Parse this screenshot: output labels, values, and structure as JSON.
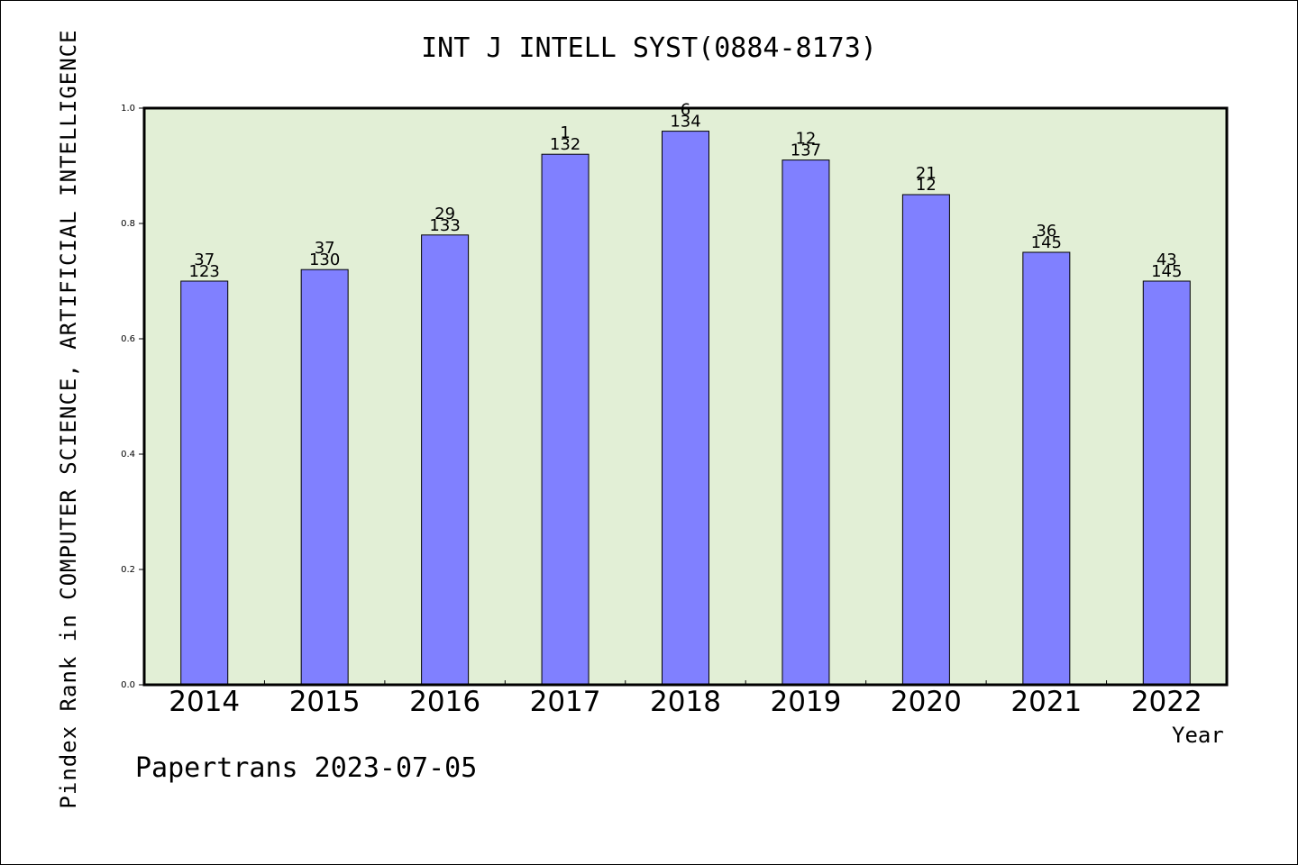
{
  "chart_data": {
    "type": "bar",
    "title": "INT J INTELL SYST(0884-8173)",
    "xlabel": "Year",
    "ylabel": "Pindex Rank in COMPUTER SCIENCE, ARTIFICIAL INTELLIGENCE",
    "ylim": [
      0,
      1.0
    ],
    "yticks": [
      "0.0",
      "0.2",
      "0.4",
      "0.6",
      "0.8",
      "1.0"
    ],
    "categories": [
      "2014",
      "2015",
      "2016",
      "2017",
      "2018",
      "2019",
      "2020",
      "2021",
      "2022"
    ],
    "values": [
      0.7,
      0.72,
      0.78,
      0.92,
      0.96,
      0.91,
      0.85,
      0.75,
      0.7
    ],
    "rank_labels": [
      "37",
      "37",
      "29",
      "1",
      "6",
      "12",
      "21",
      "36",
      "43"
    ],
    "total_labels": [
      "123",
      "130",
      "133",
      "132",
      "134",
      "137",
      "12",
      "145",
      "145"
    ],
    "grid": false,
    "colors": {
      "plot_background": "#e2efd6",
      "bar_fill": "#8080ff",
      "bar_stroke": "#000000"
    }
  },
  "footer": "Papertrans 2023-07-05"
}
